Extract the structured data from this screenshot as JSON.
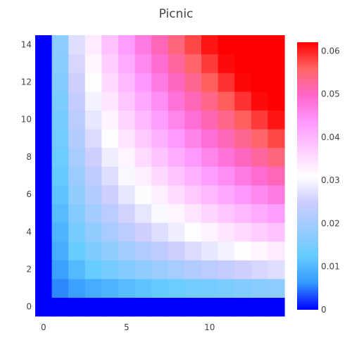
{
  "chart_data": {
    "type": "heatmap",
    "title": "Picnic",
    "colorscale_name": "Picnic",
    "x_range": [
      -0.5,
      14.5
    ],
    "y_range": [
      -0.5,
      14.5
    ],
    "x_ticks": [
      0,
      5,
      10
    ],
    "y_ticks": [
      0,
      2,
      4,
      6,
      8,
      10,
      12,
      14
    ],
    "colorbar": {
      "range": [
        0,
        0.062
      ],
      "ticks": [
        0,
        0.01,
        0.02,
        0.03,
        0.04,
        0.05,
        0.06
      ],
      "tick_labels": [
        "0",
        "0.01",
        "0.02",
        "0.03",
        "0.04",
        "0.05",
        "0.06"
      ]
    },
    "z": [
      [
        0,
        0,
        0,
        0,
        0,
        0,
        0,
        0,
        0,
        0,
        0,
        0,
        0,
        0,
        0
      ],
      [
        0,
        0.0055,
        0.0072,
        0.0085,
        0.0095,
        0.0105,
        0.0114,
        0.0122,
        0.013,
        0.0138,
        0.0145,
        0.0152,
        0.0159,
        0.0166,
        0.0172
      ],
      [
        0,
        0.0072,
        0.0102,
        0.0125,
        0.0144,
        0.0161,
        0.0176,
        0.019,
        0.0203,
        0.0216,
        0.0228,
        0.0239,
        0.025,
        0.026,
        0.027
      ],
      [
        0,
        0.0085,
        0.0125,
        0.0153,
        0.0177,
        0.0198,
        0.0217,
        0.0234,
        0.0251,
        0.0266,
        0.0281,
        0.0295,
        0.0309,
        0.0322,
        0.0334
      ],
      [
        0,
        0.0095,
        0.0144,
        0.0177,
        0.0204,
        0.0228,
        0.025,
        0.027,
        0.0289,
        0.0307,
        0.0324,
        0.034,
        0.0356,
        0.0371,
        0.0385
      ],
      [
        0,
        0.0105,
        0.0161,
        0.0198,
        0.0228,
        0.0255,
        0.0279,
        0.0302,
        0.0323,
        0.0343,
        0.0362,
        0.038,
        0.0397,
        0.0414,
        0.043
      ],
      [
        0,
        0.0114,
        0.0176,
        0.0217,
        0.025,
        0.0279,
        0.0306,
        0.0331,
        0.0354,
        0.0376,
        0.0396,
        0.0416,
        0.0435,
        0.0453,
        0.0471
      ],
      [
        0,
        0.0122,
        0.019,
        0.0234,
        0.027,
        0.0302,
        0.0331,
        0.0357,
        0.0382,
        0.0406,
        0.0428,
        0.0449,
        0.047,
        0.049,
        0.0509
      ],
      [
        0,
        0.013,
        0.0203,
        0.0251,
        0.0289,
        0.0323,
        0.0354,
        0.0382,
        0.0409,
        0.0434,
        0.0458,
        0.048,
        0.0502,
        0.0523,
        0.0544
      ],
      [
        0,
        0.0138,
        0.0216,
        0.0266,
        0.0307,
        0.0343,
        0.0376,
        0.0406,
        0.0434,
        0.046,
        0.0486,
        0.051,
        0.0533,
        0.0555,
        0.0577
      ],
      [
        0,
        0.0145,
        0.0228,
        0.0281,
        0.0324,
        0.0362,
        0.0396,
        0.0428,
        0.0458,
        0.0486,
        0.0512,
        0.0538,
        0.0562,
        0.0585,
        0.0608
      ],
      [
        0,
        0.0152,
        0.0239,
        0.0295,
        0.034,
        0.038,
        0.0416,
        0.0449,
        0.048,
        0.051,
        0.0538,
        0.0564,
        0.059,
        0.0614,
        0.062
      ],
      [
        0,
        0.0159,
        0.025,
        0.0309,
        0.0356,
        0.0397,
        0.0435,
        0.047,
        0.0502,
        0.0533,
        0.0562,
        0.059,
        0.0616,
        0.062,
        0.062
      ],
      [
        0,
        0.0166,
        0.026,
        0.0322,
        0.0371,
        0.0414,
        0.0453,
        0.049,
        0.0523,
        0.0555,
        0.0585,
        0.0614,
        0.062,
        0.062,
        0.062
      ],
      [
        0,
        0.0172,
        0.027,
        0.0334,
        0.0385,
        0.043,
        0.0471,
        0.0509,
        0.0544,
        0.0577,
        0.0608,
        0.062,
        0.062,
        0.062,
        0.062
      ]
    ],
    "colorscale": [
      [
        0.0,
        "#0000ff"
      ],
      [
        0.1,
        "#3399ff"
      ],
      [
        0.2,
        "#66ccff"
      ],
      [
        0.3,
        "#99ccff"
      ],
      [
        0.4,
        "#ccccff"
      ],
      [
        0.5,
        "#ffffff"
      ],
      [
        0.6,
        "#ffccff"
      ],
      [
        0.7,
        "#ff99ff"
      ],
      [
        0.8,
        "#ff66cc"
      ],
      [
        0.9,
        "#ff6666"
      ],
      [
        1.0,
        "#ff0000"
      ]
    ]
  }
}
